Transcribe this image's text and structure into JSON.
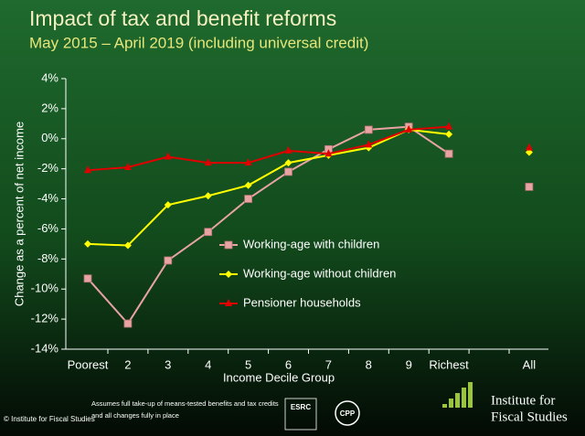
{
  "chart_data": {
    "type": "line",
    "title": "Impact of tax and benefit reforms",
    "subtitle": "May 2015 – April 2019 (including universal credit)",
    "y_label": "Change as a percent of net income",
    "x_label": "Income Decile Group",
    "categories": [
      "Poorest",
      "2",
      "3",
      "4",
      "5",
      "6",
      "7",
      "8",
      "9",
      "Richest",
      null,
      "All"
    ],
    "series": [
      {
        "name": "Working-age with children",
        "color": "#e8a3a3",
        "marker": "square",
        "values": [
          -9.3,
          -12.3,
          -8.1,
          -6.2,
          -4.0,
          -2.2,
          -0.7,
          0.6,
          0.8,
          -1.0,
          null,
          -3.2
        ]
      },
      {
        "name": "Working-age without children",
        "color": "#ffff00",
        "marker": "diamond",
        "values": [
          -7.0,
          -7.1,
          -4.4,
          -3.8,
          -3.1,
          -1.6,
          -1.1,
          -0.6,
          0.6,
          0.3,
          null,
          -0.9
        ]
      },
      {
        "name": "Pensioner households",
        "color": "#e00000",
        "marker": "triangle",
        "values": [
          -2.1,
          -1.9,
          -1.2,
          -1.6,
          -1.6,
          -0.8,
          -1.0,
          -0.4,
          0.6,
          0.8,
          null,
          -0.6
        ]
      }
    ],
    "ylim": [
      -14,
      4
    ],
    "yticks": [
      {
        "value": -14,
        "label": "-14%"
      },
      {
        "value": -12,
        "label": "-12%"
      },
      {
        "value": -10,
        "label": "-10%"
      },
      {
        "value": -8,
        "label": "-8%"
      },
      {
        "value": -6,
        "label": "-6%"
      },
      {
        "value": -4,
        "label": "-4%"
      },
      {
        "value": -2,
        "label": "-2%"
      },
      {
        "value": 0,
        "label": "0%"
      },
      {
        "value": 2,
        "label": "2%"
      },
      {
        "value": 4,
        "label": "4%"
      }
    ],
    "grid": false,
    "legend_position": "center"
  },
  "footer": {
    "copyright": "© Institute for Fiscal Studies",
    "note_line1": "Assumes full take-up of means-tested benefits and tax credits",
    "note_line2": "and all changes  fully in place",
    "esrc": "ESRC",
    "cpp": "CPP",
    "ifs_line1": "Institute for",
    "ifs_line2": "Fiscal Studies"
  }
}
